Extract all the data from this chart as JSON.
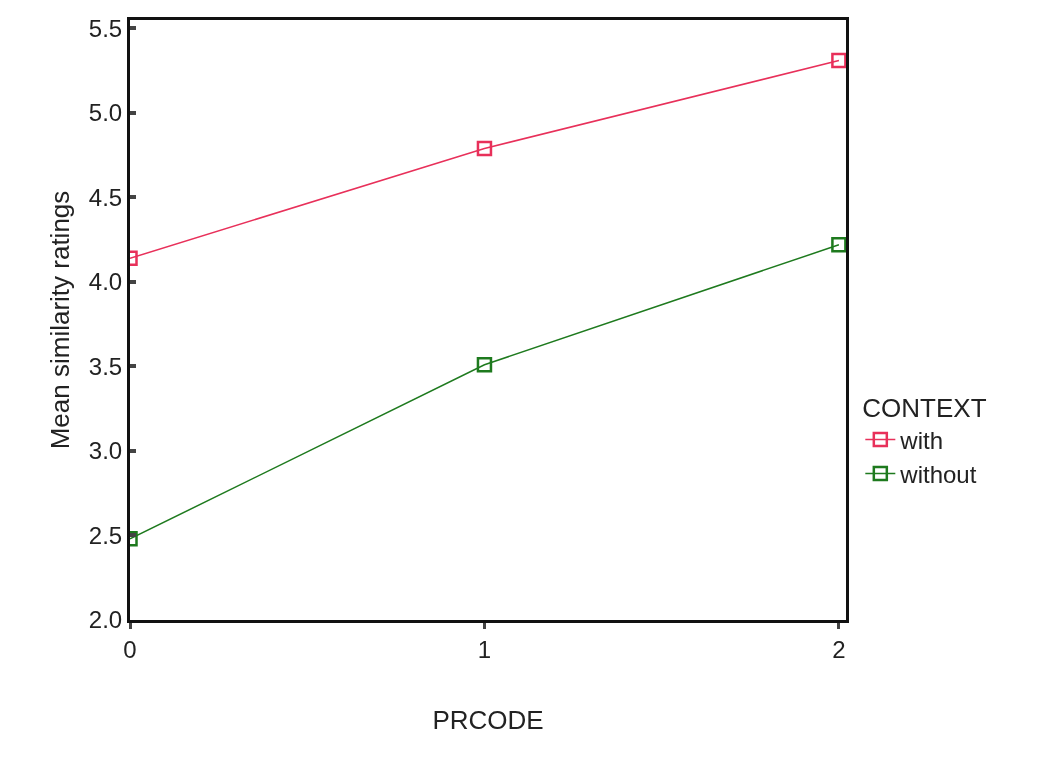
{
  "chart_data": {
    "type": "line",
    "xlabel": "PRCODE",
    "ylabel": "Mean similarity ratings",
    "legend_title": "CONTEXT",
    "x": [
      0,
      1,
      2
    ],
    "series": [
      {
        "name": "with",
        "color": "#e8305a",
        "values": [
          4.14,
          4.79,
          5.31
        ]
      },
      {
        "name": "without",
        "color": "#1e7a1e",
        "values": [
          2.48,
          3.51,
          4.22
        ]
      }
    ],
    "xlim": [
      0,
      2.02
    ],
    "xticks": [
      0,
      1,
      2
    ],
    "ylim": [
      2.0,
      5.55
    ],
    "yticks": [
      {
        "value": 2,
        "label": "2.0"
      },
      {
        "value": 2.5,
        "label": "2.5"
      },
      {
        "value": 3,
        "label": "3.0"
      },
      {
        "value": 3.5,
        "label": "3.5"
      },
      {
        "value": 4,
        "label": "4.0"
      },
      {
        "value": 4.5,
        "label": "4.5"
      },
      {
        "value": 5,
        "label": "5.0"
      },
      {
        "value": 5.5,
        "label": "5.5"
      }
    ],
    "grid": false,
    "legend": "right",
    "marker": "square",
    "line_style": "solid"
  }
}
